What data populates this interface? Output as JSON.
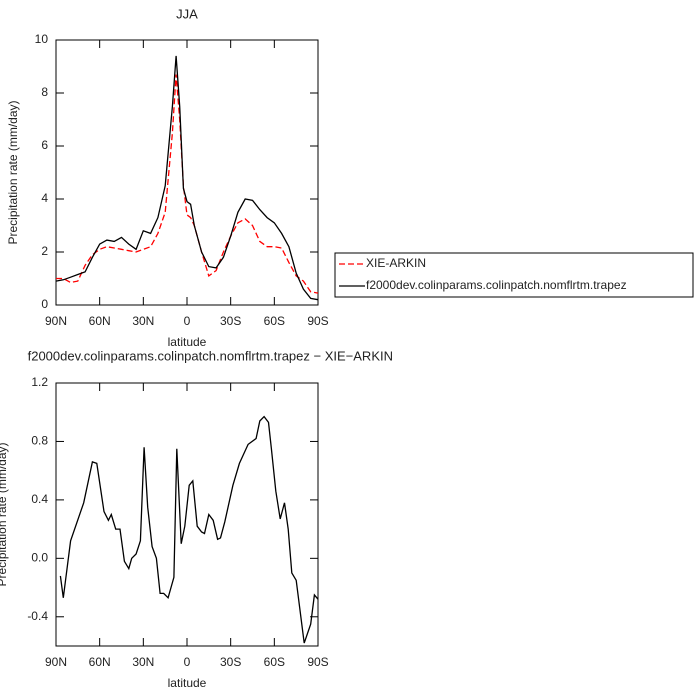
{
  "chart_data": [
    {
      "type": "line",
      "title": "JJA",
      "xlabel": "latitude",
      "ylabel": "Precipitation rate (mm/day)",
      "x": [
        90,
        85,
        80,
        75,
        70,
        65,
        60,
        55,
        50,
        45,
        40,
        35,
        30,
        25,
        20,
        15,
        10,
        7.5,
        5,
        2.5,
        0,
        -2.5,
        -5,
        -10,
        -15,
        -20,
        -25,
        -30,
        -35,
        -40,
        -45,
        -50,
        -55,
        -60,
        -65,
        -70,
        -75,
        -80,
        -85,
        -90
      ],
      "series": [
        {
          "name": "XIE-ARKIN",
          "color": "#ff0000",
          "linestyle": "dashed",
          "values": [
            1.0,
            1.0,
            0.85,
            0.9,
            1.5,
            1.9,
            2.1,
            2.2,
            2.15,
            2.1,
            2.05,
            2.0,
            2.1,
            2.2,
            2.7,
            3.5,
            6.5,
            8.7,
            7.0,
            4.5,
            3.4,
            3.3,
            3.0,
            2.0,
            1.1,
            1.3,
            2.0,
            2.6,
            3.1,
            3.25,
            3.0,
            2.4,
            2.2,
            2.2,
            2.15,
            1.6,
            1.1,
            0.9,
            0.5,
            0.45
          ]
        },
        {
          "name": "f2000dev.colinparams.colinpatch.nomflrtm.trapez",
          "color": "#000000",
          "linestyle": "solid",
          "values": [
            0.9,
            0.95,
            1.05,
            1.15,
            1.25,
            1.8,
            2.3,
            2.45,
            2.4,
            2.55,
            2.3,
            2.1,
            2.8,
            2.7,
            3.3,
            4.5,
            7.5,
            9.4,
            7.5,
            4.4,
            3.9,
            3.8,
            3.0,
            2.0,
            1.45,
            1.4,
            1.8,
            2.6,
            3.5,
            4.0,
            3.95,
            3.6,
            3.3,
            3.1,
            2.7,
            2.2,
            1.2,
            0.6,
            0.25,
            0.2
          ]
        }
      ],
      "xlim": [
        90,
        -90
      ],
      "xticks": [
        {
          "value": 90,
          "label": "90N"
        },
        {
          "value": 60,
          "label": "60N"
        },
        {
          "value": 30,
          "label": "30N"
        },
        0,
        {
          "value": -30,
          "label": "30S"
        },
        {
          "value": -60,
          "label": "60S"
        },
        {
          "value": -90,
          "label": "90S"
        }
      ],
      "ylim": [
        0,
        10
      ],
      "yticks": [
        0,
        2,
        4,
        6,
        8,
        10
      ],
      "legend": "right"
    },
    {
      "type": "line",
      "title": "f2000dev.colinparams.colinpatch.nomflrtm.trapez − XIE−ARKIN",
      "xlabel": "latitude",
      "ylabel": "Precipitation rate (mm/day)",
      "x": [
        87,
        85,
        80,
        71,
        65,
        62,
        57,
        54,
        52,
        49,
        46,
        43,
        40,
        38,
        35,
        32,
        29.5,
        27,
        24,
        21,
        18.5,
        16,
        13,
        9,
        7,
        4,
        1.5,
        -1.5,
        -4,
        -7,
        -10,
        -12,
        -15,
        -18,
        -21,
        -23,
        -26,
        -31.5,
        -36,
        -42,
        -47.5,
        -50,
        -53,
        -56,
        -58,
        -61,
        -64,
        -67,
        -69.5,
        -72,
        -75,
        -80.5,
        -85,
        -87.5,
        -90
      ],
      "values": [
        -0.12,
        -0.27,
        0.12,
        0.38,
        0.66,
        0.65,
        0.32,
        0.26,
        0.3,
        0.2,
        0.2,
        -0.02,
        -0.07,
        0.0,
        0.03,
        0.12,
        0.76,
        0.35,
        0.08,
        0.0,
        -0.24,
        -0.24,
        -0.27,
        -0.13,
        0.75,
        0.1,
        0.22,
        0.5,
        0.53,
        0.22,
        0.18,
        0.17,
        0.3,
        0.26,
        0.13,
        0.14,
        0.25,
        0.5,
        0.65,
        0.78,
        0.82,
        0.94,
        0.97,
        0.93,
        0.75,
        0.46,
        0.27,
        0.38,
        0.2,
        -0.1,
        -0.15,
        -0.58,
        -0.45,
        -0.25,
        -0.28
      ],
      "color": "#000000",
      "xlim": [
        90,
        -90
      ],
      "xticks": [
        {
          "value": 90,
          "label": "90N"
        },
        {
          "value": 60,
          "label": "60N"
        },
        {
          "value": 30,
          "label": "30N"
        },
        0,
        {
          "value": -30,
          "label": "30S"
        },
        {
          "value": -60,
          "label": "60S"
        },
        {
          "value": -90,
          "label": "90S"
        }
      ],
      "ylim": [
        -0.6,
        1.2
      ],
      "yticks": [
        -0.4,
        {
          "value": 0,
          "label": "0.0"
        },
        0.4,
        0.8,
        1.2
      ]
    }
  ]
}
